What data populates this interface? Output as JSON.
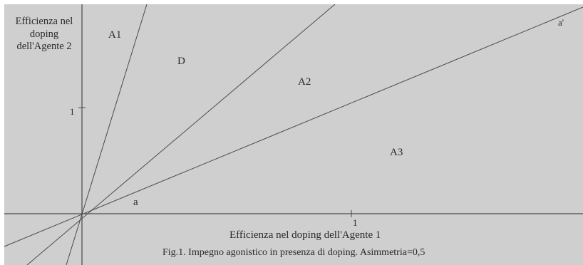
{
  "figure": {
    "caption": "Fig.1. Impegno agonistico in presenza di doping. Asimmetria=0,5",
    "x_axis_label": "Efficienza nel doping dell'Agente 1",
    "y_axis_label": "Efficienza nel doping dell'Agente 2",
    "x_tick": "1",
    "y_tick": "1",
    "regions": {
      "a1": "A1",
      "d": "D",
      "a2": "A2",
      "a3": "A3"
    },
    "ray_labels": {
      "a": "a",
      "a_prime": "a'"
    },
    "colors": {
      "background": "#cfcfcf",
      "lines": "#4a4a4a",
      "text": "#2a2a2a"
    }
  }
}
